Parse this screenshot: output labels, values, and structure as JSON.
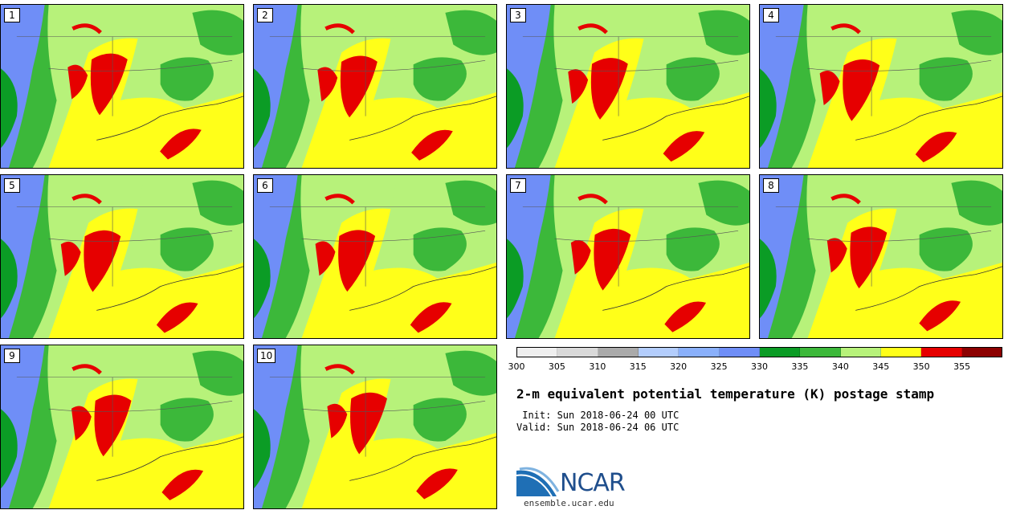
{
  "stamps": [
    {
      "label": "1"
    },
    {
      "label": "2"
    },
    {
      "label": "3"
    },
    {
      "label": "4"
    },
    {
      "label": "5"
    },
    {
      "label": "6"
    },
    {
      "label": "7"
    },
    {
      "label": "8"
    },
    {
      "label": "9"
    },
    {
      "label": "10"
    }
  ],
  "colorbar": {
    "colors": [
      "#efefef",
      "#d9d9d9",
      "#aaaaaa",
      "#b3cdfc",
      "#8ab0fb",
      "#6f8ef7",
      "#0b9c25",
      "#3cb83a",
      "#b7f27a",
      "#ffff19",
      "#e60000",
      "#8c0000"
    ],
    "ticks": [
      "300",
      "305",
      "310",
      "315",
      "320",
      "325",
      "330",
      "335",
      "340",
      "345",
      "350",
      "355"
    ]
  },
  "title": "2-m equivalent potential temperature (K) postage stamp",
  "init": " Init: Sun 2018-06-24 00 UTC",
  "valid": "Valid: Sun 2018-06-24 06 UTC",
  "logo": {
    "name": "NCAR",
    "url": "ensemble.ucar.edu"
  },
  "map_colors": {
    "ocean_yellow": "#ffff19",
    "light_green": "#b7f27a",
    "green": "#3cb83a",
    "dark_green": "#0b9c25",
    "blue": "#6f8ef7",
    "red": "#e60000"
  }
}
